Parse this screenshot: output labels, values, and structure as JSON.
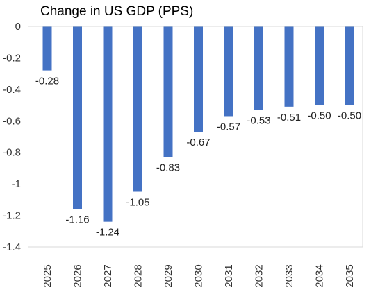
{
  "chart_data": {
    "type": "bar",
    "title": "Change in US GDP (PPS)",
    "xlabel": "",
    "ylabel": "",
    "categories": [
      "2025",
      "2026",
      "2027",
      "2028",
      "2029",
      "2030",
      "2031",
      "2032",
      "2033",
      "2034",
      "2035"
    ],
    "values": [
      -0.28,
      -1.16,
      -1.24,
      -1.05,
      -0.83,
      -0.67,
      -0.57,
      -0.53,
      -0.51,
      -0.5,
      -0.5
    ],
    "data_labels": [
      "-0.28",
      "-1.16",
      "-1.24",
      "-1.05",
      "-0.83",
      "-0.67",
      "-0.57",
      "-0.53",
      "-0.51",
      "-0.50",
      "-0.50"
    ],
    "ylim": [
      -1.4,
      0
    ],
    "y_ticks": [
      "0",
      "-0.2",
      "-0.4",
      "-0.6",
      "-0.8",
      "-1",
      "-1.2",
      "-1.4"
    ],
    "y_tick_values": [
      0,
      -0.2,
      -0.4,
      -0.6,
      -0.8,
      -1.0,
      -1.2,
      -1.4
    ],
    "grid": false,
    "legend": "none",
    "bar_color": "#4472C4",
    "frame_color": "#d9d9d9"
  }
}
